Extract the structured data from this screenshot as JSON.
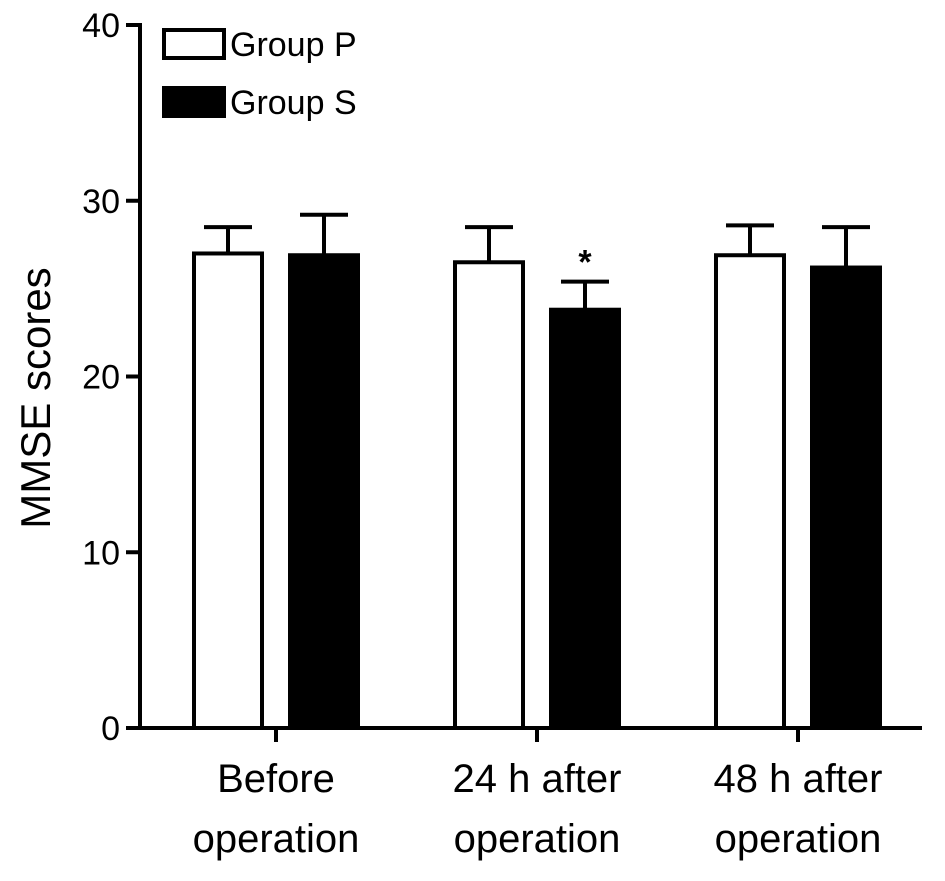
{
  "chart_data": {
    "type": "bar",
    "ylabel": "MMSE scores",
    "xlabel": "",
    "ylim": [
      0,
      40
    ],
    "yticks": [
      "0",
      "10",
      "20",
      "30",
      "40"
    ],
    "categories": [
      [
        "Before",
        "operation"
      ],
      [
        "24 h after",
        "operation"
      ],
      [
        "48 h after",
        "operation"
      ]
    ],
    "series": [
      {
        "name": "Group P",
        "fill": "#ffffff",
        "values": [
          27.0,
          26.5,
          26.9
        ],
        "errors": [
          1.5,
          2.0,
          1.7
        ]
      },
      {
        "name": "Group S",
        "fill": "#000000",
        "values": [
          26.9,
          23.8,
          26.2
        ],
        "errors": [
          2.3,
          1.6,
          2.3
        ]
      }
    ],
    "annotations": [
      {
        "text": "*",
        "series": 1,
        "category": 1
      }
    ],
    "legend_position": "top-left",
    "grid": false
  }
}
